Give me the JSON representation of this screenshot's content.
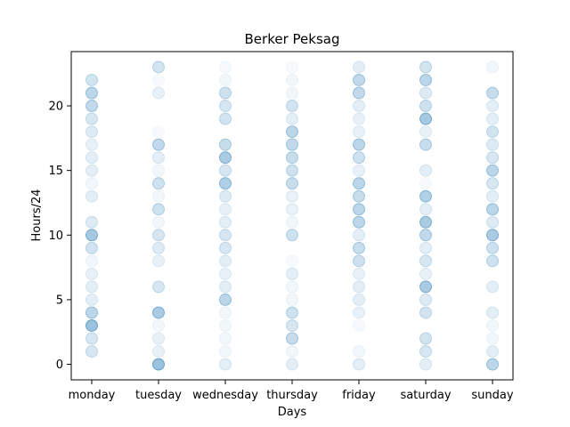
{
  "chart_data": {
    "type": "scatter",
    "title": "Berker Peksag",
    "xlabel": "Days",
    "ylabel": "Hours/24",
    "categories": [
      "monday",
      "tuesday",
      "wednesday",
      "thursday",
      "friday",
      "saturday",
      "sunday"
    ],
    "yticks": [
      0,
      5,
      10,
      15,
      20
    ],
    "ylim": [
      -1.2,
      24.2
    ],
    "grid": false,
    "legend": "none",
    "marker_color": "#1f77b4",
    "points": [
      {
        "day": "monday",
        "values": [
          {
            "hour": 1,
            "alpha": 0.18
          },
          {
            "hour": 2,
            "alpha": 0.18
          },
          {
            "hour": 3,
            "alpha": 0.45
          },
          {
            "hour": 4,
            "alpha": 0.3
          },
          {
            "hour": 5,
            "alpha": 0.12
          },
          {
            "hour": 6,
            "alpha": 0.12
          },
          {
            "hour": 7,
            "alpha": 0.1
          },
          {
            "hour": 8,
            "alpha": 0.06
          },
          {
            "hour": 9,
            "alpha": 0.2
          },
          {
            "hour": 10,
            "alpha": 0.4
          },
          {
            "hour": 11,
            "alpha": 0.15
          },
          {
            "hour": 13,
            "alpha": 0.12
          },
          {
            "hour": 14,
            "alpha": 0.06
          },
          {
            "hour": 15,
            "alpha": 0.12
          },
          {
            "hour": 16,
            "alpha": 0.12
          },
          {
            "hour": 17,
            "alpha": 0.1
          },
          {
            "hour": 18,
            "alpha": 0.15
          },
          {
            "hour": 19,
            "alpha": 0.18
          },
          {
            "hour": 20,
            "alpha": 0.28
          },
          {
            "hour": 21,
            "alpha": 0.3
          },
          {
            "hour": 22,
            "alpha": 0.2
          }
        ]
      },
      {
        "day": "tuesday",
        "values": [
          {
            "hour": 0,
            "alpha": 0.45
          },
          {
            "hour": 1,
            "alpha": 0.1
          },
          {
            "hour": 2,
            "alpha": 0.1
          },
          {
            "hour": 3,
            "alpha": 0.06
          },
          {
            "hour": 4,
            "alpha": 0.38
          },
          {
            "hour": 6,
            "alpha": 0.18
          },
          {
            "hour": 8,
            "alpha": 0.1
          },
          {
            "hour": 9,
            "alpha": 0.15
          },
          {
            "hour": 10,
            "alpha": 0.18
          },
          {
            "hour": 11,
            "alpha": 0.06
          },
          {
            "hour": 12,
            "alpha": 0.22
          },
          {
            "hour": 13,
            "alpha": 0.06
          },
          {
            "hour": 14,
            "alpha": 0.22
          },
          {
            "hour": 15,
            "alpha": 0.06
          },
          {
            "hour": 16,
            "alpha": 0.12
          },
          {
            "hour": 17,
            "alpha": 0.28
          },
          {
            "hour": 18,
            "alpha": 0.04
          },
          {
            "hour": 21,
            "alpha": 0.1
          },
          {
            "hour": 22,
            "alpha": 0.04
          },
          {
            "hour": 23,
            "alpha": 0.2
          }
        ]
      },
      {
        "day": "wednesday",
        "values": [
          {
            "hour": 0,
            "alpha": 0.12
          },
          {
            "hour": 1,
            "alpha": 0.06
          },
          {
            "hour": 2,
            "alpha": 0.06
          },
          {
            "hour": 3,
            "alpha": 0.06
          },
          {
            "hour": 4,
            "alpha": 0.06
          },
          {
            "hour": 5,
            "alpha": 0.3
          },
          {
            "hour": 6,
            "alpha": 0.12
          },
          {
            "hour": 7,
            "alpha": 0.1
          },
          {
            "hour": 8,
            "alpha": 0.12
          },
          {
            "hour": 9,
            "alpha": 0.18
          },
          {
            "hour": 10,
            "alpha": 0.18
          },
          {
            "hour": 11,
            "alpha": 0.12
          },
          {
            "hour": 12,
            "alpha": 0.1
          },
          {
            "hour": 13,
            "alpha": 0.15
          },
          {
            "hour": 14,
            "alpha": 0.35
          },
          {
            "hour": 15,
            "alpha": 0.18
          },
          {
            "hour": 16,
            "alpha": 0.38
          },
          {
            "hour": 17,
            "alpha": 0.25
          },
          {
            "hour": 19,
            "alpha": 0.2
          },
          {
            "hour": 20,
            "alpha": 0.18
          },
          {
            "hour": 21,
            "alpha": 0.22
          },
          {
            "hour": 22,
            "alpha": 0.06
          },
          {
            "hour": 23,
            "alpha": 0.04
          }
        ]
      },
      {
        "day": "thursday",
        "values": [
          {
            "hour": 0,
            "alpha": 0.12
          },
          {
            "hour": 1,
            "alpha": 0.06
          },
          {
            "hour": 2,
            "alpha": 0.25
          },
          {
            "hour": 3,
            "alpha": 0.18
          },
          {
            "hour": 4,
            "alpha": 0.22
          },
          {
            "hour": 5,
            "alpha": 0.06
          },
          {
            "hour": 6,
            "alpha": 0.06
          },
          {
            "hour": 7,
            "alpha": 0.12
          },
          {
            "hour": 8,
            "alpha": 0.04
          },
          {
            "hour": 10,
            "alpha": 0.22
          },
          {
            "hour": 11,
            "alpha": 0.06
          },
          {
            "hour": 12,
            "alpha": 0.1
          },
          {
            "hour": 13,
            "alpha": 0.1
          },
          {
            "hour": 14,
            "alpha": 0.25
          },
          {
            "hour": 15,
            "alpha": 0.22
          },
          {
            "hour": 16,
            "alpha": 0.25
          },
          {
            "hour": 17,
            "alpha": 0.28
          },
          {
            "hour": 18,
            "alpha": 0.3
          },
          {
            "hour": 19,
            "alpha": 0.12
          },
          {
            "hour": 20,
            "alpha": 0.2
          },
          {
            "hour": 21,
            "alpha": 0.06
          },
          {
            "hour": 22,
            "alpha": 0.06
          },
          {
            "hour": 23,
            "alpha": 0.04
          }
        ]
      },
      {
        "day": "friday",
        "values": [
          {
            "hour": 0,
            "alpha": 0.12
          },
          {
            "hour": 1,
            "alpha": 0.06
          },
          {
            "hour": 3,
            "alpha": 0.04
          },
          {
            "hour": 4,
            "alpha": 0.1
          },
          {
            "hour": 5,
            "alpha": 0.12
          },
          {
            "hour": 6,
            "alpha": 0.12
          },
          {
            "hour": 7,
            "alpha": 0.1
          },
          {
            "hour": 8,
            "alpha": 0.22
          },
          {
            "hour": 9,
            "alpha": 0.25
          },
          {
            "hour": 10,
            "alpha": 0.12
          },
          {
            "hour": 11,
            "alpha": 0.3
          },
          {
            "hour": 12,
            "alpha": 0.3
          },
          {
            "hour": 13,
            "alpha": 0.25
          },
          {
            "hour": 14,
            "alpha": 0.3
          },
          {
            "hour": 15,
            "alpha": 0.1
          },
          {
            "hour": 16,
            "alpha": 0.22
          },
          {
            "hour": 17,
            "alpha": 0.3
          },
          {
            "hour": 18,
            "alpha": 0.1
          },
          {
            "hour": 19,
            "alpha": 0.1
          },
          {
            "hour": 20,
            "alpha": 0.12
          },
          {
            "hour": 21,
            "alpha": 0.28
          },
          {
            "hour": 22,
            "alpha": 0.28
          },
          {
            "hour": 23,
            "alpha": 0.12
          }
        ]
      },
      {
        "day": "saturday",
        "values": [
          {
            "hour": 0,
            "alpha": 0.12
          },
          {
            "hour": 1,
            "alpha": 0.18
          },
          {
            "hour": 2,
            "alpha": 0.2
          },
          {
            "hour": 4,
            "alpha": 0.2
          },
          {
            "hour": 5,
            "alpha": 0.15
          },
          {
            "hour": 6,
            "alpha": 0.38
          },
          {
            "hour": 7,
            "alpha": 0.1
          },
          {
            "hour": 8,
            "alpha": 0.18
          },
          {
            "hour": 9,
            "alpha": 0.12
          },
          {
            "hour": 10,
            "alpha": 0.28
          },
          {
            "hour": 11,
            "alpha": 0.38
          },
          {
            "hour": 12,
            "alpha": 0.12
          },
          {
            "hour": 13,
            "alpha": 0.35
          },
          {
            "hour": 14,
            "alpha": 0.04
          },
          {
            "hour": 15,
            "alpha": 0.12
          },
          {
            "hour": 17,
            "alpha": 0.25
          },
          {
            "hour": 18,
            "alpha": 0.1
          },
          {
            "hour": 19,
            "alpha": 0.4
          },
          {
            "hour": 20,
            "alpha": 0.22
          },
          {
            "hour": 21,
            "alpha": 0.15
          },
          {
            "hour": 22,
            "alpha": 0.3
          },
          {
            "hour": 23,
            "alpha": 0.2
          }
        ]
      },
      {
        "day": "sunday",
        "values": [
          {
            "hour": 0,
            "alpha": 0.3
          },
          {
            "hour": 1,
            "alpha": 0.12
          },
          {
            "hour": 2,
            "alpha": 0.06
          },
          {
            "hour": 3,
            "alpha": 0.06
          },
          {
            "hour": 4,
            "alpha": 0.12
          },
          {
            "hour": 6,
            "alpha": 0.12
          },
          {
            "hour": 8,
            "alpha": 0.22
          },
          {
            "hour": 9,
            "alpha": 0.22
          },
          {
            "hour": 10,
            "alpha": 0.38
          },
          {
            "hour": 11,
            "alpha": 0.15
          },
          {
            "hour": 12,
            "alpha": 0.3
          },
          {
            "hour": 13,
            "alpha": 0.12
          },
          {
            "hour": 14,
            "alpha": 0.18
          },
          {
            "hour": 15,
            "alpha": 0.3
          },
          {
            "hour": 16,
            "alpha": 0.18
          },
          {
            "hour": 17,
            "alpha": 0.15
          },
          {
            "hour": 18,
            "alpha": 0.2
          },
          {
            "hour": 19,
            "alpha": 0.12
          },
          {
            "hour": 20,
            "alpha": 0.12
          },
          {
            "hour": 21,
            "alpha": 0.25
          },
          {
            "hour": 23,
            "alpha": 0.06
          }
        ]
      }
    ]
  }
}
